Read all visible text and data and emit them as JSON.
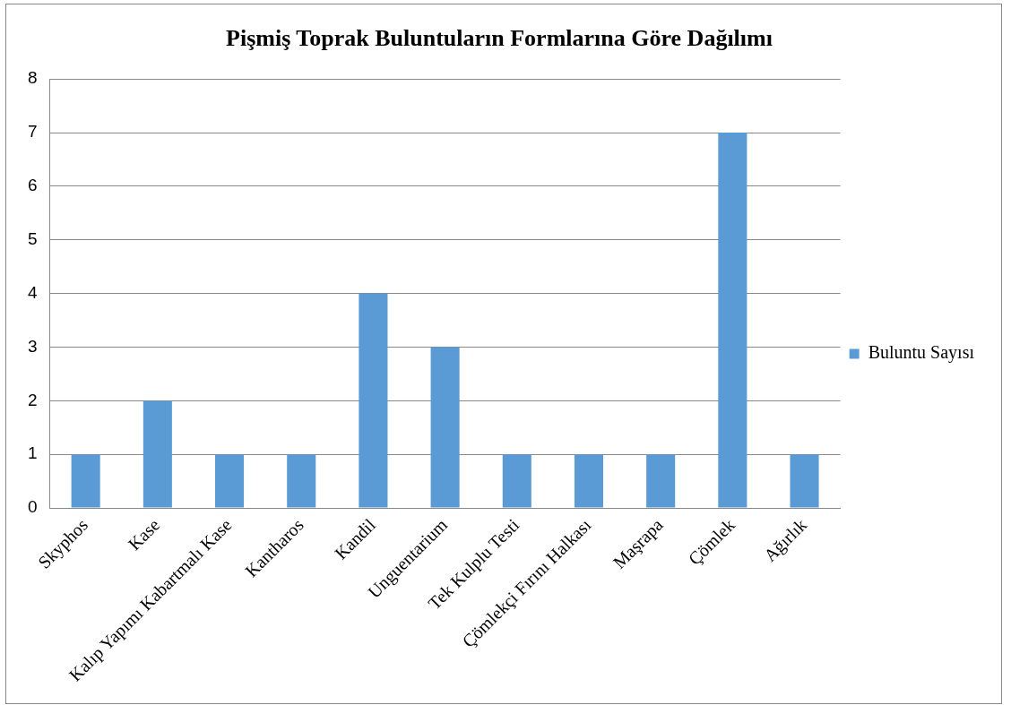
{
  "chart_data": {
    "type": "bar",
    "title": "Pişmiş Toprak Buluntuların Formlarına Göre Dağılımı",
    "categories": [
      "Skyphos",
      "Kase",
      "Kalıp Yapımı Kabartmalı Kase",
      "Kantharos",
      "Kandil",
      "Unguentarium",
      "Tek Kulplu Testi",
      "Çömlekçi Fırını Halkası",
      "Maşrapa",
      "Çömlek",
      "Ağırlık"
    ],
    "series": [
      {
        "name": "Buluntu Sayısı",
        "color": "#5b9bd5",
        "values": [
          1,
          2,
          1,
          1,
          4,
          3,
          1,
          1,
          1,
          7,
          1
        ]
      }
    ],
    "ylim": [
      0,
      8
    ],
    "yticks": [
      0,
      1,
      2,
      3,
      4,
      5,
      6,
      7,
      8
    ],
    "grid": "y",
    "legend": "right"
  }
}
